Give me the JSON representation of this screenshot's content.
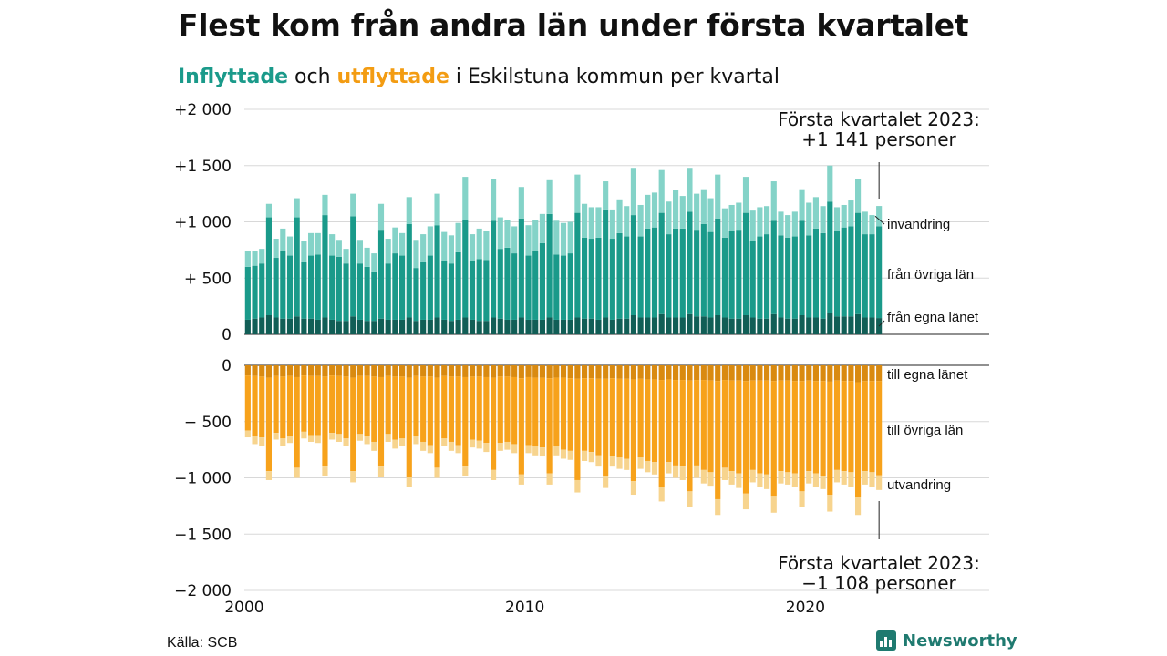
{
  "title": "Flest kom från andra län under första kvartalet",
  "subtitle": {
    "part1": "Inflyttade",
    "part2": " och ",
    "part3": "utflyttade",
    "part4": " i Eskilstuna kommun per kvartal"
  },
  "source": "Källa: SCB",
  "brand": "Newsworthy",
  "colors": {
    "in_own": "#115e56",
    "in_other": "#1a9a8a",
    "in_abroad": "#84d3c8",
    "out_own": "#d98a10",
    "out_other": "#f7a21b",
    "out_abroad": "#f7d48e"
  },
  "annotations": {
    "top_line1": "Första kvartalet 2023:",
    "top_line2": "+1 141 personer",
    "bottom_line1": "Första kvartalet 2023:",
    "bottom_line2": "−1 108 personer"
  },
  "chart_data": {
    "type": "bar",
    "stacked": true,
    "x_unit": "quarter",
    "x_start": "2000 Q1",
    "x_end": "2023 Q1",
    "x_ticks": [
      {
        "label": "2000",
        "year": 2000
      },
      {
        "label": "2010",
        "year": 2010
      },
      {
        "label": "2020",
        "year": 2020
      }
    ],
    "y_ticks_top": [
      {
        "label": "+2 000",
        "value": 2000
      },
      {
        "label": "+1 500",
        "value": 1500
      },
      {
        "label": "+1 000",
        "value": 1000
      },
      {
        "label": "+  500",
        "value": 500
      },
      {
        "label": "0",
        "value": 0
      }
    ],
    "y_ticks_bottom": [
      {
        "label": "0",
        "value": 0
      },
      {
        "label": "−  500",
        "value": -500
      },
      {
        "label": "−1 000",
        "value": -1000
      },
      {
        "label": "−1 500",
        "value": -1500
      },
      {
        "label": "−2 000",
        "value": -2000
      }
    ],
    "ylim_top": [
      0,
      2000
    ],
    "ylim_bottom": [
      -2000,
      0
    ],
    "series_labels": {
      "in_abroad": "invandring",
      "in_other": "från övriga län",
      "in_own": "från egna länet",
      "out_own": "till egna länet",
      "out_other": "till övriga län",
      "out_abroad": "utvandring"
    },
    "in_total": [
      740,
      740,
      760,
      1160,
      850,
      940,
      870,
      1210,
      830,
      900,
      900,
      1240,
      890,
      840,
      760,
      1250,
      840,
      770,
      720,
      1160,
      850,
      950,
      900,
      1220,
      840,
      890,
      960,
      1250,
      910,
      880,
      990,
      1400,
      890,
      940,
      920,
      1380,
      1040,
      1020,
      960,
      1310,
      970,
      1020,
      1070,
      1370,
      1010,
      990,
      1000,
      1420,
      1160,
      1130,
      1130,
      1360,
      1110,
      1200,
      1140,
      1480,
      1150,
      1240,
      1260,
      1460,
      1180,
      1280,
      1230,
      1480,
      1250,
      1290,
      1210,
      1420,
      1120,
      1150,
      1170,
      1400,
      1100,
      1130,
      1140,
      1360,
      1090,
      1060,
      1090,
      1290,
      1170,
      1220,
      1140,
      1500,
      1130,
      1150,
      1190,
      1380,
      1090,
      1060,
      1141
    ],
    "in_own": [
      130,
      140,
      150,
      170,
      150,
      140,
      140,
      160,
      140,
      140,
      130,
      150,
      130,
      120,
      120,
      160,
      130,
      120,
      120,
      140,
      130,
      130,
      130,
      150,
      120,
      130,
      130,
      150,
      130,
      120,
      130,
      150,
      130,
      120,
      120,
      150,
      140,
      130,
      130,
      150,
      130,
      130,
      130,
      150,
      130,
      130,
      130,
      150,
      140,
      140,
      130,
      150,
      130,
      140,
      140,
      170,
      150,
      150,
      150,
      180,
      150,
      150,
      150,
      180,
      160,
      160,
      150,
      170,
      150,
      140,
      140,
      170,
      150,
      140,
      140,
      180,
      150,
      140,
      140,
      170,
      150,
      150,
      140,
      190,
      160,
      160,
      160,
      180,
      150,
      150,
      145
    ],
    "in_abroad": [
      140,
      130,
      130,
      120,
      170,
      200,
      170,
      170,
      190,
      200,
      190,
      180,
      190,
      150,
      130,
      200,
      210,
      170,
      160,
      230,
      220,
      230,
      200,
      240,
      250,
      250,
      260,
      280,
      260,
      250,
      260,
      380,
      240,
      270,
      260,
      370,
      280,
      250,
      240,
      280,
      270,
      280,
      260,
      300,
      300,
      290,
      280,
      340,
      300,
      280,
      270,
      250,
      260,
      300,
      270,
      420,
      280,
      300,
      310,
      380,
      290,
      340,
      290,
      390,
      320,
      310,
      300,
      390,
      260,
      230,
      240,
      320,
      270,
      260,
      250,
      350,
      210,
      200,
      220,
      280,
      290,
      280,
      240,
      320,
      210,
      200,
      230,
      300,
      200,
      170,
      180
    ],
    "out_total": [
      640,
      700,
      720,
      1020,
      660,
      720,
      690,
      1000,
      650,
      680,
      690,
      980,
      660,
      680,
      720,
      1040,
      670,
      700,
      760,
      990,
      680,
      740,
      720,
      1080,
      700,
      760,
      780,
      1000,
      720,
      760,
      780,
      980,
      730,
      740,
      770,
      1020,
      760,
      750,
      780,
      1060,
      780,
      800,
      810,
      1060,
      800,
      830,
      840,
      1130,
      850,
      860,
      900,
      1090,
      900,
      920,
      930,
      1150,
      920,
      950,
      970,
      1210,
      960,
      1000,
      1020,
      1260,
      1000,
      1050,
      1070,
      1330,
      1020,
      1060,
      1090,
      1280,
      1040,
      1080,
      1100,
      1310,
      1050,
      1060,
      1080,
      1260,
      1050,
      1080,
      1100,
      1300,
      1040,
      1060,
      1080,
      1330,
      1060,
      1080,
      1108
    ],
    "out_own": [
      90,
      95,
      100,
      110,
      95,
      100,
      95,
      105,
      90,
      95,
      95,
      100,
      90,
      95,
      100,
      110,
      95,
      95,
      100,
      105,
      95,
      100,
      100,
      110,
      95,
      100,
      100,
      110,
      95,
      100,
      100,
      105,
      100,
      100,
      105,
      110,
      100,
      100,
      105,
      115,
      105,
      110,
      110,
      115,
      110,
      110,
      115,
      120,
      115,
      115,
      120,
      120,
      115,
      120,
      120,
      125,
      120,
      125,
      125,
      130,
      125,
      130,
      130,
      135,
      130,
      130,
      135,
      140,
      130,
      135,
      135,
      140,
      135,
      135,
      135,
      140,
      135,
      135,
      140,
      140,
      135,
      140,
      140,
      145,
      135,
      140,
      140,
      150,
      140,
      140,
      140
    ],
    "out_abroad": [
      60,
      70,
      80,
      80,
      60,
      70,
      60,
      90,
      60,
      60,
      70,
      80,
      60,
      70,
      70,
      100,
      60,
      70,
      80,
      90,
      70,
      80,
      70,
      90,
      70,
      80,
      70,
      90,
      70,
      80,
      70,
      80,
      70,
      70,
      80,
      90,
      70,
      70,
      80,
      90,
      70,
      80,
      80,
      100,
      80,
      80,
      80,
      110,
      90,
      90,
      100,
      110,
      90,
      100,
      100,
      120,
      100,
      100,
      110,
      130,
      100,
      110,
      120,
      140,
      110,
      120,
      120,
      140,
      110,
      120,
      130,
      140,
      110,
      120,
      130,
      150,
      110,
      110,
      120,
      140,
      110,
      120,
      120,
      150,
      110,
      120,
      130,
      160,
      120,
      130,
      130
    ]
  }
}
